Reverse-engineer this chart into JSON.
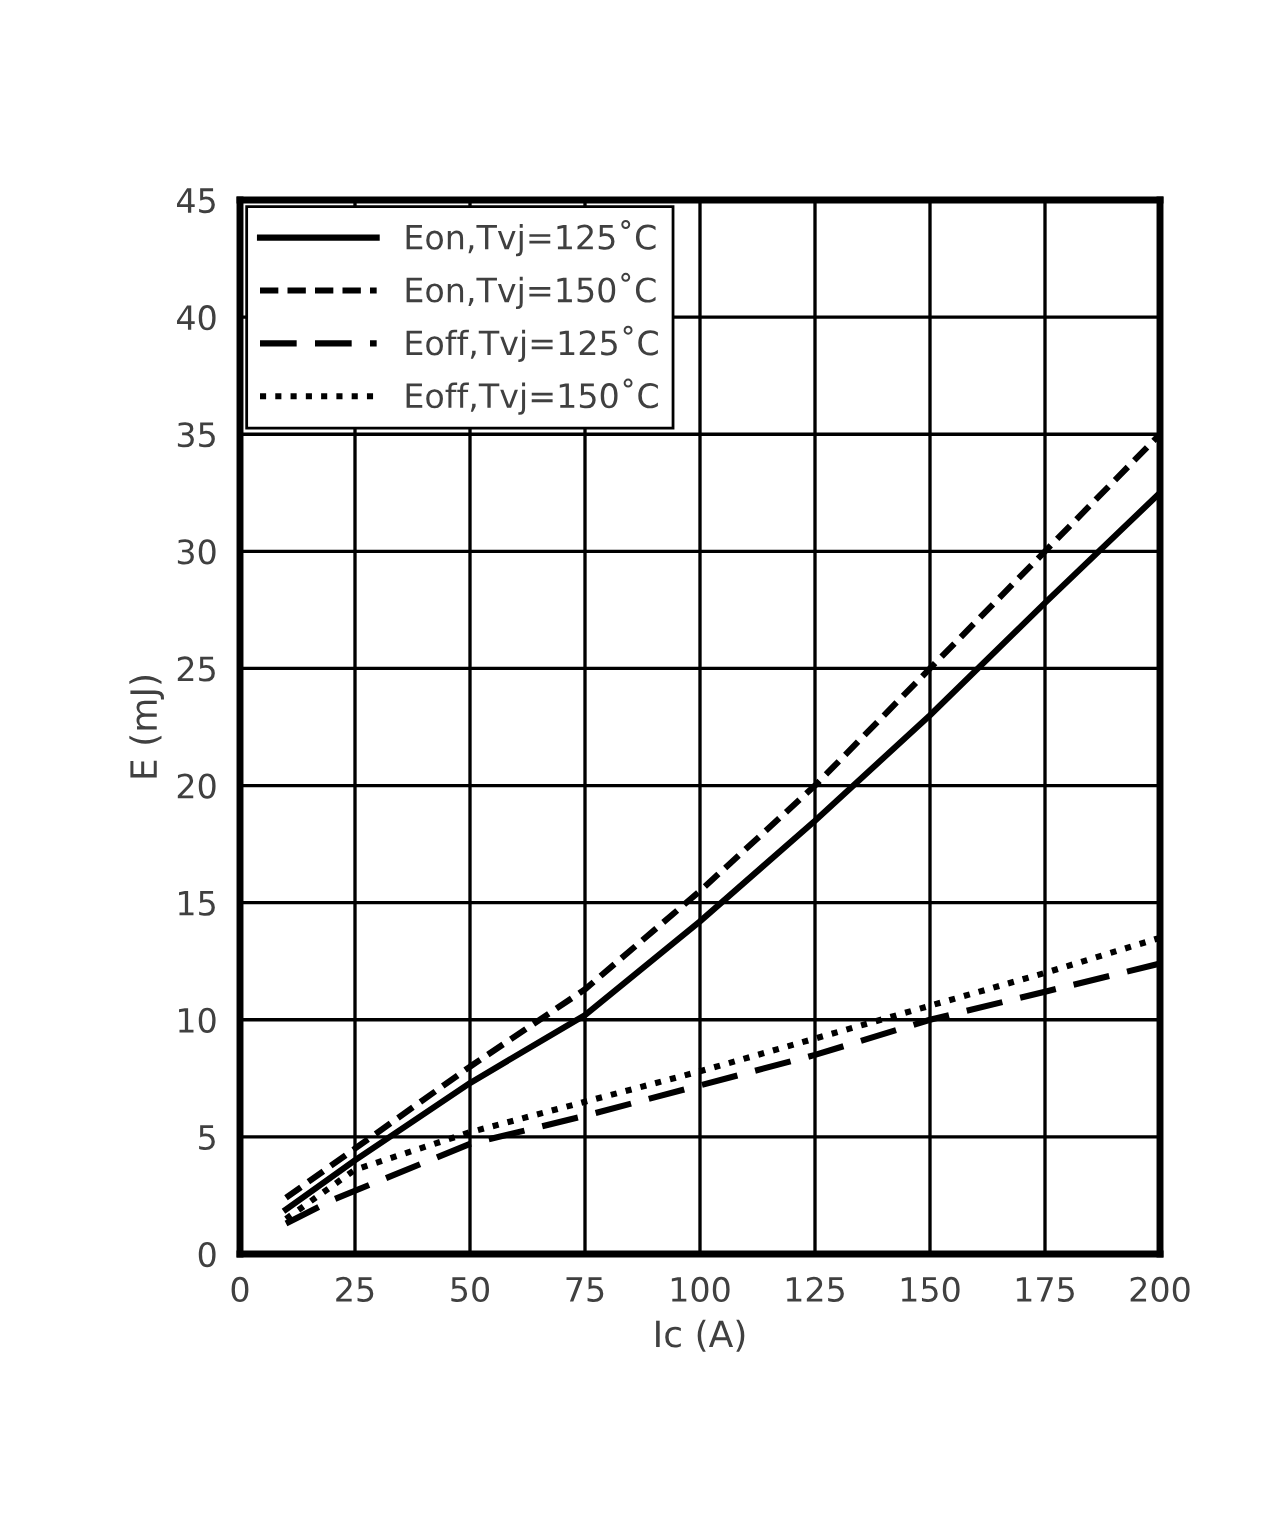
{
  "chart_data": {
    "type": "line",
    "xlabel": "Ic (A)",
    "ylabel": "E (mJ)",
    "xlim": [
      0,
      200
    ],
    "xticks": [
      0,
      25,
      50,
      75,
      100,
      125,
      150,
      175,
      200
    ],
    "ylim": [
      0,
      45
    ],
    "yticks": [
      0,
      5,
      10,
      15,
      20,
      25,
      30,
      35,
      40,
      45
    ],
    "grid": true,
    "legend": "top left",
    "marker": "none",
    "series": [
      {
        "name": "Eon,Tvj=125˚C",
        "color": "#000000",
        "line_style": "solid",
        "x": [
          10,
          25,
          50,
          75,
          100,
          125,
          150,
          175,
          200
        ],
        "values": [
          1.9,
          4.0,
          7.3,
          10.2,
          14.2,
          18.5,
          23.0,
          27.8,
          32.5
        ]
      },
      {
        "name": "Eon,Tvj=150˚C",
        "color": "#000000",
        "line_style": "dashed",
        "x": [
          10,
          25,
          50,
          75,
          100,
          125,
          150,
          175,
          200
        ],
        "values": [
          2.4,
          4.5,
          8.0,
          11.3,
          15.5,
          20.0,
          25.0,
          30.0,
          35.0
        ]
      },
      {
        "name": "Eoff,Tvj=125˚C",
        "color": "#000000",
        "line_style": "dashed",
        "x": [
          10,
          20,
          50,
          75,
          100,
          125,
          150,
          175,
          200
        ],
        "values": [
          1.3,
          2.3,
          4.7,
          5.9,
          7.2,
          8.5,
          10.0,
          11.2,
          12.4
        ]
      },
      {
        "name": "Eoff,Tvj=150˚C",
        "color": "#000000",
        "line_style": "dotted",
        "x": [
          10,
          25,
          50,
          75,
          100,
          125,
          150,
          175,
          200
        ],
        "values": [
          1.5,
          3.6,
          5.2,
          6.5,
          7.8,
          9.2,
          10.6,
          12.0,
          13.5
        ]
      }
    ]
  }
}
